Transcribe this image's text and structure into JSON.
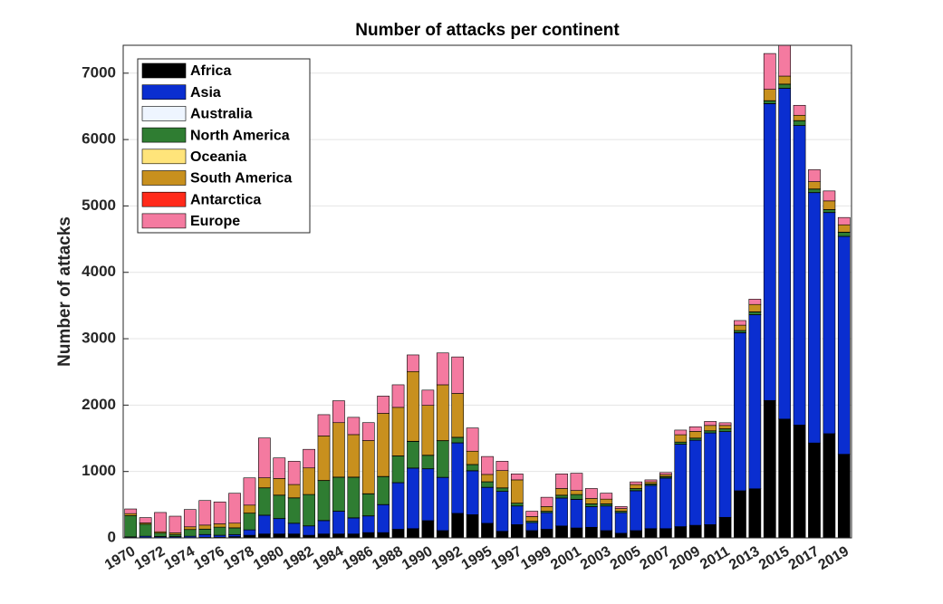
{
  "chart_data": {
    "type": "stacked-bar",
    "title": "Number of attacks per continent",
    "y_label": "Number of attacks",
    "categories": [
      "1970",
      null,
      "1972",
      null,
      "1974",
      null,
      "1976",
      null,
      "1978",
      null,
      "1980",
      null,
      "1982",
      null,
      "1984",
      null,
      "1986",
      null,
      "1988",
      null,
      "1990",
      null,
      "1992",
      null,
      "1995",
      null,
      "1997",
      null,
      "1999",
      null,
      "2001",
      null,
      "2003",
      null,
      "2005",
      null,
      "2007",
      null,
      "2009",
      null,
      "2011",
      null,
      "2013",
      null,
      "2015",
      null,
      "2017",
      null,
      "2019"
    ],
    "series": [
      {
        "name": "Africa",
        "color": "#000000",
        "values": [
          5,
          5,
          5,
          5,
          5,
          10,
          10,
          20,
          40,
          60,
          60,
          60,
          40,
          60,
          60,
          60,
          80,
          80,
          130,
          140,
          260,
          110,
          370,
          350,
          220,
          100,
          200,
          110,
          130,
          180,
          150,
          160,
          110,
          70,
          110,
          140,
          140,
          170,
          190,
          200,
          310,
          710,
          740,
          2070,
          1790,
          1700,
          1430,
          1570,
          1260
        ]
      },
      {
        "name": "Asia",
        "color": "#0a2ed0",
        "values": [
          10,
          20,
          15,
          15,
          20,
          40,
          30,
          30,
          80,
          280,
          230,
          160,
          140,
          200,
          340,
          240,
          250,
          420,
          700,
          910,
          780,
          800,
          1060,
          660,
          540,
          600,
          280,
          120,
          250,
          420,
          430,
          310,
          370,
          310,
          600,
          650,
          760,
          1240,
          1280,
          1380,
          1290,
          2380,
          2620,
          4470,
          4980,
          4510,
          3770,
          3330,
          3280
        ]
      },
      {
        "name": "Australia",
        "color": "#eef5ff",
        "values": [
          1,
          1,
          2,
          1,
          1,
          2,
          1,
          1,
          2,
          3,
          3,
          2,
          2,
          3,
          3,
          3,
          3,
          3,
          3,
          3,
          3,
          3,
          3,
          3,
          3,
          2,
          2,
          1,
          1,
          2,
          2,
          2,
          2,
          1,
          2,
          2,
          2,
          2,
          2,
          2,
          2,
          2,
          3,
          3,
          3,
          3,
          3,
          3,
          3
        ]
      },
      {
        "name": "North America",
        "color": "#2f7d32",
        "values": [
          320,
          180,
          50,
          30,
          100,
          80,
          120,
          100,
          250,
          410,
          350,
          380,
          470,
          600,
          510,
          610,
          330,
          420,
          400,
          400,
          200,
          550,
          80,
          90,
          80,
          50,
          40,
          20,
          20,
          40,
          70,
          40,
          30,
          20,
          30,
          20,
          20,
          30,
          30,
          30,
          40,
          30,
          40,
          40,
          60,
          70,
          50,
          40,
          60
        ]
      },
      {
        "name": "Oceania",
        "color": "#ffe47a",
        "values": [
          0,
          0,
          1,
          1,
          1,
          1,
          1,
          1,
          2,
          2,
          2,
          2,
          2,
          3,
          3,
          3,
          3,
          3,
          3,
          3,
          3,
          3,
          3,
          3,
          3,
          2,
          2,
          1,
          1,
          2,
          2,
          2,
          2,
          1,
          2,
          2,
          2,
          2,
          2,
          2,
          2,
          2,
          3,
          3,
          3,
          3,
          3,
          3,
          3
        ]
      },
      {
        "name": "South America",
        "color": "#c8901e",
        "values": [
          30,
          20,
          20,
          25,
          40,
          60,
          50,
          70,
          120,
          150,
          250,
          200,
          400,
          670,
          820,
          640,
          800,
          950,
          730,
          1050,
          750,
          840,
          660,
          200,
          110,
          260,
          350,
          70,
          70,
          100,
          60,
          80,
          70,
          40,
          60,
          30,
          30,
          110,
          100,
          80,
          50,
          80,
          110,
          170,
          120,
          80,
          110,
          130,
          110
        ]
      },
      {
        "name": "Antarctica",
        "color": "#ff2a1a",
        "values": [
          0,
          0,
          0,
          0,
          0,
          0,
          0,
          0,
          0,
          0,
          0,
          0,
          0,
          0,
          0,
          0,
          0,
          0,
          0,
          0,
          0,
          0,
          0,
          0,
          0,
          0,
          0,
          0,
          0,
          0,
          0,
          0,
          0,
          0,
          0,
          0,
          0,
          0,
          0,
          0,
          0,
          0,
          0,
          0,
          0,
          0,
          0,
          0,
          0
        ]
      },
      {
        "name": "Europe",
        "color": "#f47aa0",
        "values": [
          70,
          80,
          290,
          250,
          260,
          370,
          330,
          450,
          410,
          600,
          310,
          350,
          280,
          320,
          330,
          260,
          270,
          260,
          340,
          250,
          230,
          480,
          550,
          350,
          270,
          140,
          90,
          80,
          140,
          220,
          260,
          150,
          90,
          30,
          40,
          30,
          30,
          70,
          70,
          60,
          40,
          70,
          80,
          540,
          500,
          150,
          180,
          150,
          110
        ]
      }
    ],
    "ylim": [
      0,
      7420
    ],
    "yticks": [
      0,
      1000,
      2000,
      3000,
      4000,
      5000,
      6000,
      7000
    ],
    "grid": true,
    "legend": "northwest"
  }
}
